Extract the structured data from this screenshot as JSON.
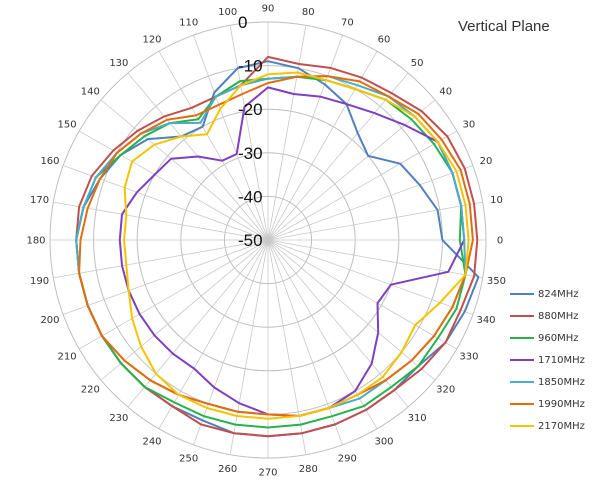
{
  "chart_data": {
    "type": "polar-line",
    "title": "Vertical Plane",
    "angle_ticks": [
      "0",
      "10",
      "20",
      "30",
      "40",
      "50",
      "60",
      "70",
      "80",
      "90",
      "100",
      "110",
      "120",
      "130",
      "140",
      "150",
      "160",
      "170",
      "180",
      "190",
      "200",
      "210",
      "220",
      "230",
      "240",
      "250",
      "260",
      "270",
      "280",
      "290",
      "300",
      "310",
      "320",
      "330",
      "340",
      "350"
    ],
    "radial_ticks": [
      0,
      -10,
      -20,
      -30,
      -40,
      -50
    ],
    "radial_range": [
      -50,
      0
    ],
    "angles": [
      0,
      10,
      20,
      30,
      40,
      50,
      60,
      70,
      80,
      90,
      100,
      110,
      120,
      130,
      140,
      150,
      160,
      170,
      180,
      190,
      200,
      210,
      220,
      230,
      240,
      250,
      260,
      270,
      280,
      290,
      300,
      310,
      320,
      330,
      340,
      350
    ],
    "series": [
      {
        "name": "824MHz",
        "color": "#4f81bd",
        "values": [
          -10,
          -10.5,
          -13,
          -15,
          -20,
          -18,
          -14,
          -12,
          -10,
          -9,
          -10,
          -14,
          -20,
          -19,
          -14,
          -11,
          -9,
          -7,
          -6,
          -6,
          -6,
          -6,
          -6,
          -6,
          -6,
          -6,
          -5,
          -5,
          -5,
          -5,
          -5,
          -5,
          -5,
          -3,
          -2,
          -1
        ]
      },
      {
        "name": "880MHz",
        "color": "#c0504d",
        "values": [
          -2,
          -2,
          -2,
          -2.5,
          -4,
          -6,
          -7,
          -8,
          -9,
          -8,
          -14,
          -15,
          -15,
          -13,
          -11,
          -9,
          -7,
          -6,
          -6,
          -6,
          -6,
          -6,
          -6,
          -6,
          -6,
          -5,
          -5,
          -5,
          -5,
          -5,
          -5,
          -5,
          -4,
          -3,
          -3,
          -2
        ]
      },
      {
        "name": "960MHz",
        "color": "#27b24a",
        "values": [
          -6,
          -5,
          -5,
          -6,
          -7,
          -8,
          -10,
          -11,
          -12,
          -13,
          -13,
          -15,
          -18,
          -15,
          -13,
          -11,
          -8,
          -7,
          -6,
          -6,
          -6,
          -6,
          -6,
          -6,
          -7,
          -7,
          -7,
          -7,
          -7,
          -7,
          -6,
          -6,
          -5,
          -5,
          -4,
          -4
        ]
      },
      {
        "name": "1710MHz",
        "color": "#7f3fbf",
        "values": [
          -5,
          -5,
          -5,
          -5,
          -9,
          -12,
          -14,
          -15,
          -16,
          -15,
          -19,
          -29,
          -29,
          -25,
          -21,
          -20,
          -18,
          -16,
          -16,
          -16,
          -16,
          -16,
          -16,
          -16,
          -16,
          -14,
          -12,
          -10,
          -9,
          -9,
          -10,
          -13,
          -17,
          -21,
          -20,
          -8
        ]
      },
      {
        "name": "1850MHz",
        "color": "#4bacc6",
        "values": [
          -5,
          -5,
          -5,
          -5,
          -6,
          -7,
          -9,
          -10,
          -12,
          -13,
          -14,
          -15,
          -19,
          -15,
          -12,
          -10,
          -8,
          -7,
          -6,
          -6,
          -6,
          -6,
          -7,
          -8,
          -9,
          -10,
          -10,
          -10,
          -9,
          -9,
          -8,
          -8,
          -7,
          -6,
          -5,
          -4
        ]
      },
      {
        "name": "1990MHz",
        "color": "#e46c0a",
        "values": [
          -3,
          -3,
          -3,
          -4,
          -5,
          -7,
          -8,
          -10,
          -12,
          -14,
          -16,
          -17,
          -17,
          -14,
          -12,
          -10,
          -9,
          -8,
          -7,
          -6,
          -6,
          -6,
          -7,
          -8,
          -9,
          -10,
          -10,
          -10,
          -9,
          -9,
          -9,
          -8,
          -7,
          -6,
          -5,
          -4
        ]
      },
      {
        "name": "2170MHz",
        "color": "#f5c400",
        "values": [
          -4,
          -4,
          -4,
          -5,
          -6,
          -8,
          -10,
          -11,
          -11,
          -12,
          -14,
          -18,
          -22,
          -19,
          -16,
          -14,
          -15,
          -17,
          -17,
          -17,
          -16,
          -14,
          -12,
          -10,
          -9,
          -9,
          -9,
          -9,
          -9,
          -9,
          -9,
          -9,
          -10,
          -11,
          -8,
          -4
        ]
      }
    ]
  }
}
